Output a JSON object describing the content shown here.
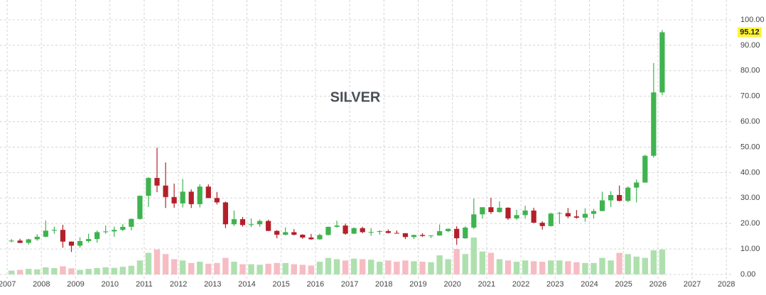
{
  "chart_data": {
    "type": "candlestick",
    "title": "SILVER",
    "x": [
      2007.125,
      2007.375,
      2007.625,
      2007.875,
      2008.125,
      2008.375,
      2008.625,
      2008.875,
      2009.125,
      2009.375,
      2009.625,
      2009.875,
      2010.125,
      2010.375,
      2010.625,
      2010.875,
      2011.125,
      2011.375,
      2011.625,
      2011.875,
      2012.125,
      2012.375,
      2012.625,
      2012.875,
      2013.125,
      2013.375,
      2013.625,
      2013.875,
      2014.125,
      2014.375,
      2014.625,
      2014.875,
      2015.125,
      2015.375,
      2015.625,
      2015.875,
      2016.125,
      2016.375,
      2016.625,
      2016.875,
      2017.125,
      2017.375,
      2017.625,
      2017.875,
      2018.125,
      2018.375,
      2018.625,
      2018.875,
      2019.125,
      2019.375,
      2019.625,
      2019.875,
      2020.125,
      2020.375,
      2020.625,
      2020.875,
      2021.125,
      2021.375,
      2021.625,
      2021.875,
      2022.125,
      2022.375,
      2022.625,
      2022.875,
      2023.125,
      2023.375,
      2023.625,
      2023.875,
      2024.125,
      2024.375,
      2024.625,
      2024.875,
      2025.125,
      2025.375,
      2025.625,
      2025.875,
      2026.125
    ],
    "open": [
      13.0,
      13.3,
      12.4,
      13.8,
      14.8,
      17.2,
      17.5,
      12.9,
      11.3,
      13.1,
      13.9,
      16.6,
      16.9,
      17.5,
      18.7,
      21.8,
      30.9,
      37.9,
      34.9,
      30.4,
      27.9,
      32.5,
      27.6,
      34.5,
      30.0,
      28.3,
      19.7,
      21.7,
      19.4,
      19.7,
      21.0,
      17.1,
      15.6,
      16.6,
      15.6,
      14.5,
      13.8,
      15.5,
      18.7,
      19.2,
      16.0,
      18.2,
      16.6,
      16.7,
      17.0,
      16.3,
      16.2,
      14.7,
      15.5,
      15.1,
      15.3,
      17.0,
      17.9,
      14.2,
      18.4,
      23.6,
      26.4,
      24.5,
      26.2,
      22.0,
      23.3,
      25.1,
      20.3,
      19.0,
      23.9,
      24.1,
      22.8,
      22.3,
      23.8,
      24.9,
      29.1,
      31.2,
      28.9,
      34.1,
      36.1,
      46.6,
      71.5
    ],
    "high": [
      13.9,
      14.0,
      14.0,
      15.8,
      21.2,
      18.8,
      19.5,
      13.0,
      14.6,
      16.0,
      17.3,
      19.2,
      18.8,
      19.8,
      22.0,
      31.0,
      38.2,
      49.8,
      44.0,
      35.7,
      37.5,
      33.4,
      35.4,
      35.4,
      32.4,
      28.6,
      25.1,
      22.6,
      22.0,
      21.6,
      21.5,
      17.4,
      18.5,
      17.8,
      15.8,
      15.9,
      16.0,
      18.8,
      21.1,
      20.0,
      18.5,
      18.7,
      18.2,
      17.4,
      17.7,
      17.3,
      16.2,
      15.6,
      16.2,
      15.4,
      19.6,
      18.1,
      18.9,
      18.9,
      29.8,
      26.4,
      30.1,
      28.7,
      26.4,
      25.4,
      27.0,
      26.2,
      20.9,
      24.3,
      24.6,
      26.1,
      25.3,
      26.0,
      25.8,
      32.5,
      32.7,
      34.9,
      34.6,
      37.3,
      47.0,
      83.0,
      96.0
    ],
    "low": [
      12.6,
      12.3,
      11.7,
      13.2,
      14.6,
      16.0,
      10.5,
      8.8,
      10.5,
      12.5,
      12.5,
      16.0,
      14.8,
      17.0,
      17.3,
      21.5,
      26.5,
      32.3,
      26.1,
      26.2,
      26.3,
      26.1,
      26.3,
      30.0,
      27.5,
      18.2,
      19.0,
      18.8,
      18.6,
      18.7,
      17.0,
      14.2,
      15.3,
      15.3,
      14.0,
      13.6,
      13.6,
      15.3,
      18.4,
      15.6,
      15.9,
      16.2,
      15.2,
      15.6,
      16.1,
      16.0,
      13.9,
      13.9,
      14.8,
      14.3,
      15.2,
      16.6,
      11.6,
      14.0,
      17.8,
      21.9,
      23.8,
      24.2,
      21.4,
      21.4,
      21.9,
      20.2,
      17.6,
      18.8,
      19.9,
      22.1,
      21.9,
      20.7,
      21.9,
      24.8,
      26.5,
      28.7,
      28.4,
      28.3,
      36.0,
      45.9,
      70.5
    ],
    "close": [
      13.3,
      12.4,
      13.8,
      14.8,
      17.2,
      17.5,
      12.9,
      11.3,
      13.1,
      13.9,
      16.6,
      16.9,
      17.5,
      18.7,
      21.8,
      30.9,
      37.9,
      34.9,
      30.4,
      27.9,
      32.5,
      27.6,
      34.5,
      30.0,
      28.3,
      19.7,
      21.7,
      19.4,
      19.7,
      21.0,
      17.1,
      15.6,
      16.6,
      15.6,
      14.5,
      13.8,
      15.5,
      18.7,
      19.2,
      16.0,
      18.2,
      16.6,
      16.7,
      17.0,
      16.3,
      16.2,
      14.7,
      15.5,
      15.1,
      15.3,
      17.0,
      17.9,
      14.2,
      18.4,
      23.6,
      26.4,
      24.5,
      26.2,
      22.0,
      23.3,
      25.1,
      20.3,
      19.0,
      23.9,
      24.1,
      22.8,
      22.3,
      23.8,
      24.9,
      29.1,
      31.2,
      28.9,
      34.1,
      36.1,
      46.6,
      71.5,
      95.12
    ],
    "volume": [
      1.5,
      1.8,
      2.2,
      2.0,
      2.8,
      2.5,
      3.2,
      2.4,
      1.8,
      2.2,
      2.5,
      2.8,
      2.6,
      3.0,
      3.4,
      5.5,
      8.5,
      9.8,
      8.0,
      6.0,
      5.5,
      4.5,
      5.0,
      4.2,
      4.5,
      6.5,
      5.0,
      4.0,
      4.0,
      3.8,
      4.2,
      4.5,
      4.5,
      4.0,
      3.8,
      3.5,
      5.0,
      6.5,
      6.0,
      5.5,
      6.2,
      6.0,
      5.8,
      5.0,
      5.5,
      5.0,
      5.5,
      5.2,
      5.0,
      4.8,
      7.5,
      6.0,
      10.0,
      8.0,
      14.5,
      9.0,
      8.5,
      6.0,
      5.5,
      5.0,
      5.5,
      5.2,
      5.0,
      5.5,
      5.5,
      5.2,
      4.8,
      4.5,
      4.5,
      6.5,
      5.5,
      8.5,
      8.0,
      7.0,
      6.5,
      9.5,
      9.8
    ],
    "up_color": "#3fb34f",
    "down_color": "#b3202a",
    "volume_up_color": "#aee0ae",
    "volume_down_color": "#f7bcc3",
    "price_tag_color": "#fff23a",
    "xlim": [
      2006.79,
      2028.16
    ],
    "xticks": [
      2007,
      2008,
      2009,
      2010,
      2011,
      2012,
      2013,
      2014,
      2015,
      2016,
      2017,
      2018,
      2019,
      2020,
      2021,
      2022,
      2023,
      2024,
      2025,
      2026,
      2027,
      2028
    ],
    "ylim": [
      0,
      100
    ],
    "yticks": [
      {
        "value": 0,
        "label": "0.00"
      },
      {
        "value": 10,
        "label": "10.00"
      },
      {
        "value": 20,
        "label": "20.00"
      },
      {
        "value": 30,
        "label": "30.00"
      },
      {
        "value": 40,
        "label": "40.00"
      },
      {
        "value": 50,
        "label": "50.00"
      },
      {
        "value": 60,
        "label": "60.00"
      },
      {
        "value": 70,
        "label": "70.00"
      },
      {
        "value": 80,
        "label": "80.00"
      },
      {
        "value": 90,
        "label": "90.00"
      },
      {
        "value": 100,
        "label": "100.00"
      }
    ],
    "grid": true
  }
}
